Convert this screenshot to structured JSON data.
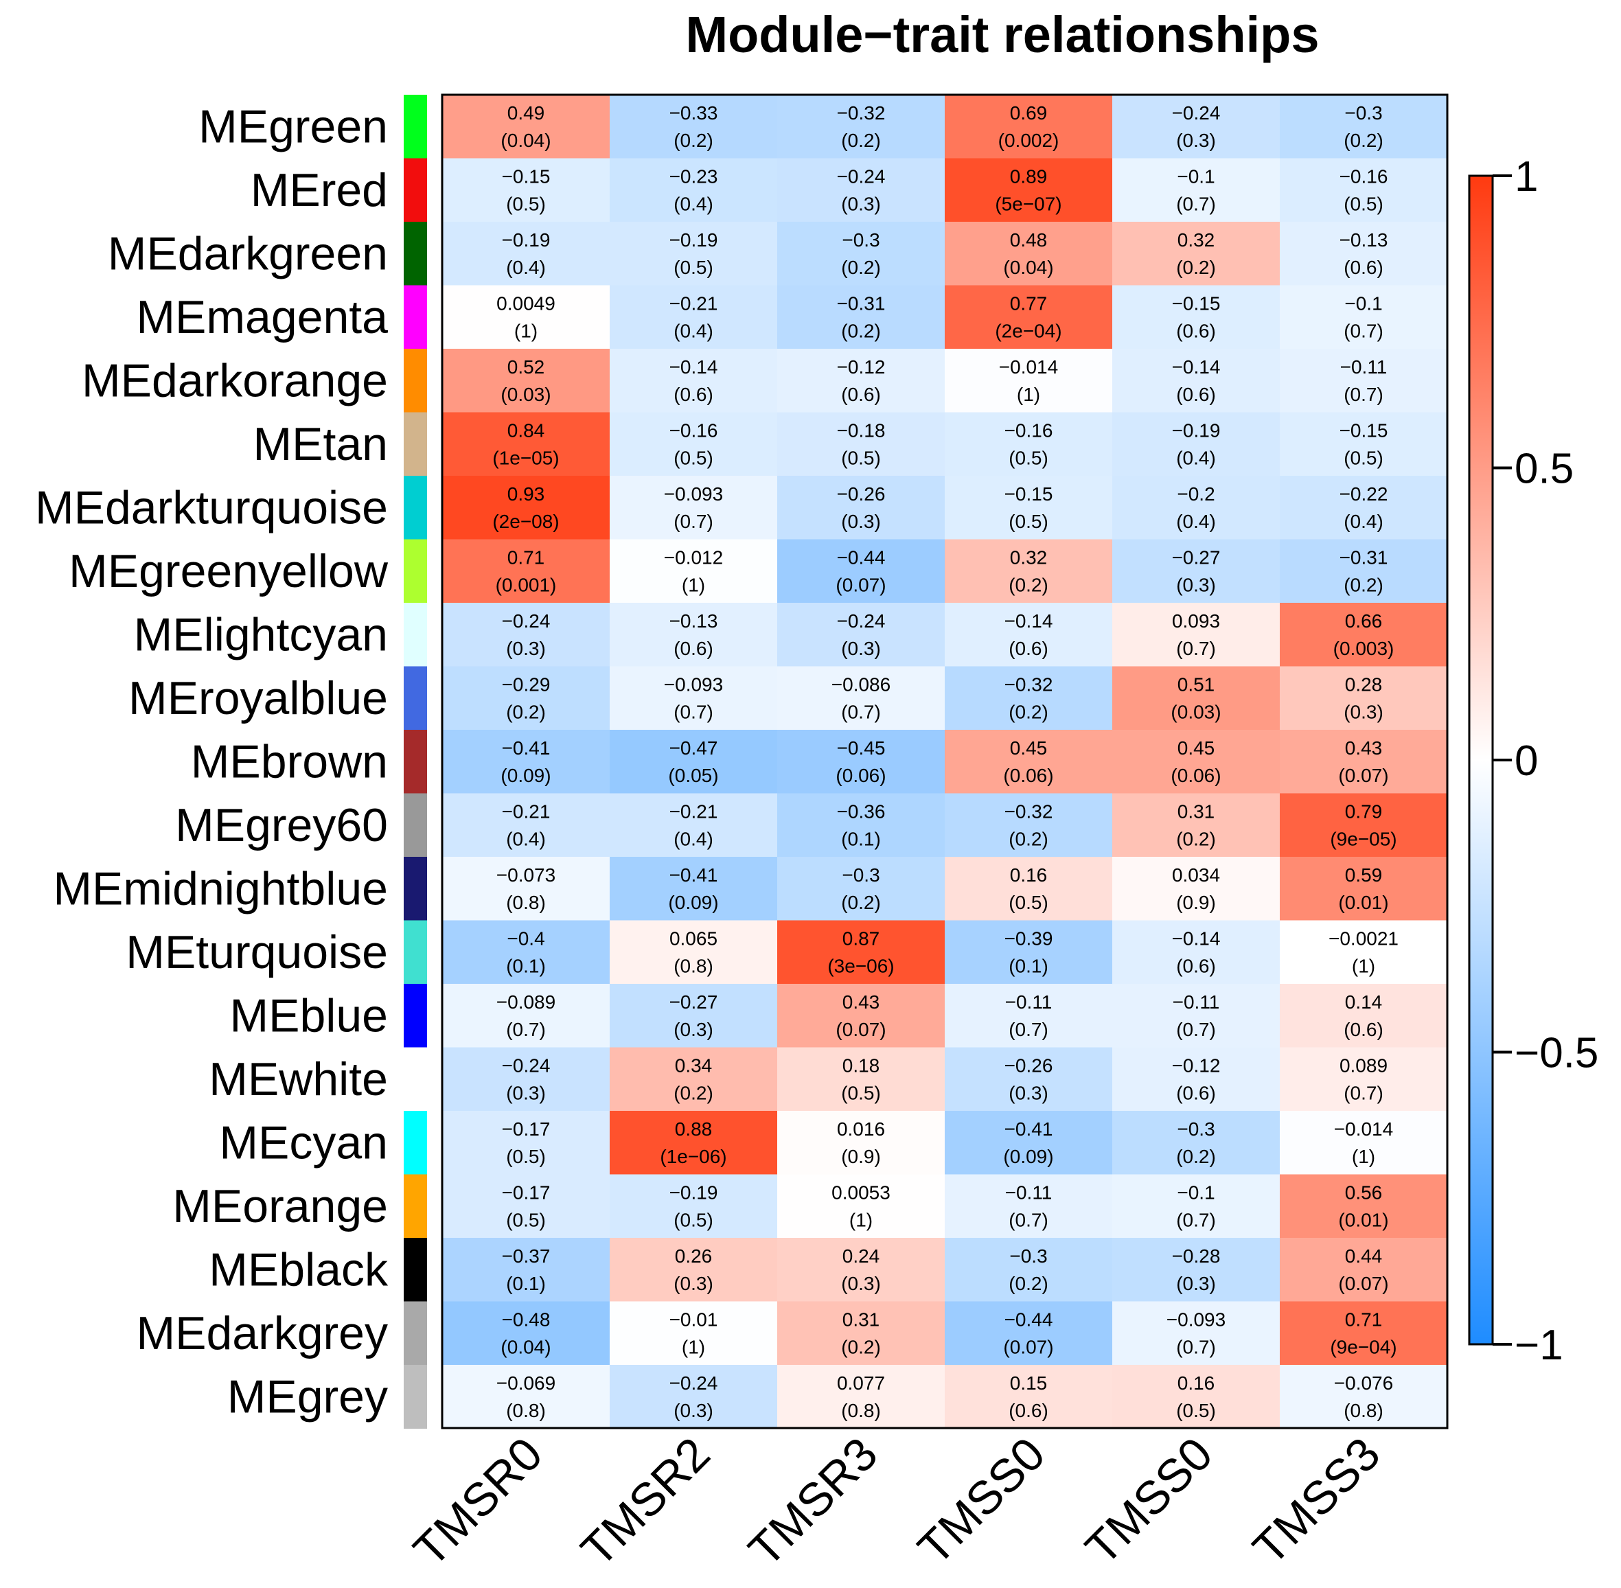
{
  "chart_data": {
    "type": "heatmap",
    "title": "Module−trait relationships",
    "columns": [
      "TMSR0",
      "TMSR2",
      "TMSR3",
      "TMSS0",
      "TMSS0",
      "TMSS3"
    ],
    "rows": [
      {
        "label": "MEgreen",
        "color": "#00FF1C",
        "r": [
          "0.49",
          "−0.33",
          "−0.32",
          "0.69",
          "−0.24",
          "−0.3"
        ],
        "p": [
          "(0.04)",
          "(0.2)",
          "(0.2)",
          "(0.002)",
          "(0.3)",
          "(0.2)"
        ],
        "v": [
          0.49,
          -0.33,
          -0.32,
          0.69,
          -0.24,
          -0.3
        ]
      },
      {
        "label": "MEred",
        "color": "#F20D0D",
        "r": [
          "−0.15",
          "−0.23",
          "−0.24",
          "0.89",
          "−0.1",
          "−0.16"
        ],
        "p": [
          "(0.5)",
          "(0.4)",
          "(0.3)",
          "(5e−07)",
          "(0.7)",
          "(0.5)"
        ],
        "v": [
          -0.15,
          -0.23,
          -0.24,
          0.89,
          -0.1,
          -0.16
        ]
      },
      {
        "label": "MEdarkgreen",
        "color": "#006400",
        "r": [
          "−0.19",
          "−0.19",
          "−0.3",
          "0.48",
          "0.32",
          "−0.13"
        ],
        "p": [
          "(0.4)",
          "(0.5)",
          "(0.2)",
          "(0.04)",
          "(0.2)",
          "(0.6)"
        ],
        "v": [
          -0.19,
          -0.19,
          -0.3,
          0.48,
          0.32,
          -0.13
        ]
      },
      {
        "label": "MEmagenta",
        "color": "#FF00FF",
        "r": [
          "0.0049",
          "−0.21",
          "−0.31",
          "0.77",
          "−0.15",
          "−0.1"
        ],
        "p": [
          "(1)",
          "(0.4)",
          "(0.2)",
          "(2e−04)",
          "(0.6)",
          "(0.7)"
        ],
        "v": [
          0.0049,
          -0.21,
          -0.31,
          0.77,
          -0.15,
          -0.1
        ]
      },
      {
        "label": "MEdarkorange",
        "color": "#FF8C00",
        "r": [
          "0.52",
          "−0.14",
          "−0.12",
          "−0.014",
          "−0.14",
          "−0.11"
        ],
        "p": [
          "(0.03)",
          "(0.6)",
          "(0.6)",
          "(1)",
          "(0.6)",
          "(0.7)"
        ],
        "v": [
          0.52,
          -0.14,
          -0.12,
          -0.014,
          -0.14,
          -0.11
        ]
      },
      {
        "label": "MEtan",
        "color": "#D2B48C",
        "r": [
          "0.84",
          "−0.16",
          "−0.18",
          "−0.16",
          "−0.19",
          "−0.15"
        ],
        "p": [
          "(1e−05)",
          "(0.5)",
          "(0.5)",
          "(0.5)",
          "(0.4)",
          "(0.5)"
        ],
        "v": [
          0.84,
          -0.16,
          -0.18,
          -0.16,
          -0.19,
          -0.15
        ]
      },
      {
        "label": "MEdarkturquoise",
        "color": "#00CED1",
        "r": [
          "0.93",
          "−0.093",
          "−0.26",
          "−0.15",
          "−0.2",
          "−0.22"
        ],
        "p": [
          "(2e−08)",
          "(0.7)",
          "(0.3)",
          "(0.5)",
          "(0.4)",
          "(0.4)"
        ],
        "v": [
          0.93,
          -0.093,
          -0.26,
          -0.15,
          -0.2,
          -0.22
        ]
      },
      {
        "label": "MEgreenyellow",
        "color": "#ADFF2F",
        "r": [
          "0.71",
          "−0.012",
          "−0.44",
          "0.32",
          "−0.27",
          "−0.31"
        ],
        "p": [
          "(0.001)",
          "(1)",
          "(0.07)",
          "(0.2)",
          "(0.3)",
          "(0.2)"
        ],
        "v": [
          0.71,
          -0.012,
          -0.44,
          0.32,
          -0.27,
          -0.31
        ]
      },
      {
        "label": "MElightcyan",
        "color": "#E0FFFF",
        "r": [
          "−0.24",
          "−0.13",
          "−0.24",
          "−0.14",
          "0.093",
          "0.66"
        ],
        "p": [
          "(0.3)",
          "(0.6)",
          "(0.3)",
          "(0.6)",
          "(0.7)",
          "(0.003)"
        ],
        "v": [
          -0.24,
          -0.13,
          -0.24,
          -0.14,
          0.093,
          0.66
        ]
      },
      {
        "label": "MEroyalblue",
        "color": "#4169E1",
        "r": [
          "−0.29",
          "−0.093",
          "−0.086",
          "−0.32",
          "0.51",
          "0.28"
        ],
        "p": [
          "(0.2)",
          "(0.7)",
          "(0.7)",
          "(0.2)",
          "(0.03)",
          "(0.3)"
        ],
        "v": [
          -0.29,
          -0.093,
          -0.086,
          -0.32,
          0.51,
          0.28
        ]
      },
      {
        "label": "MEbrown",
        "color": "#A52A2A",
        "r": [
          "−0.41",
          "−0.47",
          "−0.45",
          "0.45",
          "0.45",
          "0.43"
        ],
        "p": [
          "(0.09)",
          "(0.05)",
          "(0.06)",
          "(0.06)",
          "(0.06)",
          "(0.07)"
        ],
        "v": [
          -0.41,
          -0.47,
          -0.45,
          0.45,
          0.45,
          0.43
        ]
      },
      {
        "label": "MEgrey60",
        "color": "#999999",
        "r": [
          "−0.21",
          "−0.21",
          "−0.36",
          "−0.32",
          "0.31",
          "0.79"
        ],
        "p": [
          "(0.4)",
          "(0.4)",
          "(0.1)",
          "(0.2)",
          "(0.2)",
          "(9e−05)"
        ],
        "v": [
          -0.21,
          -0.21,
          -0.36,
          -0.32,
          0.31,
          0.79
        ]
      },
      {
        "label": "MEmidnightblue",
        "color": "#191970",
        "r": [
          "−0.073",
          "−0.41",
          "−0.3",
          "0.16",
          "0.034",
          "0.59"
        ],
        "p": [
          "(0.8)",
          "(0.09)",
          "(0.2)",
          "(0.5)",
          "(0.9)",
          "(0.01)"
        ],
        "v": [
          -0.073,
          -0.41,
          -0.3,
          0.16,
          0.034,
          0.59
        ]
      },
      {
        "label": "MEturquoise",
        "color": "#40E0D0",
        "r": [
          "−0.4",
          "0.065",
          "0.87",
          "−0.39",
          "−0.14",
          "−0.0021"
        ],
        "p": [
          "(0.1)",
          "(0.8)",
          "(3e−06)",
          "(0.1)",
          "(0.6)",
          "(1)"
        ],
        "v": [
          -0.4,
          0.065,
          0.87,
          -0.39,
          -0.14,
          -0.0021
        ]
      },
      {
        "label": "MEblue",
        "color": "#0000FF",
        "r": [
          "−0.089",
          "−0.27",
          "0.43",
          "−0.11",
          "−0.11",
          "0.14"
        ],
        "p": [
          "(0.7)",
          "(0.3)",
          "(0.07)",
          "(0.7)",
          "(0.7)",
          "(0.6)"
        ],
        "v": [
          -0.089,
          -0.27,
          0.43,
          -0.11,
          -0.11,
          0.14
        ]
      },
      {
        "label": "MEwhite",
        "color": "#FFFFFF",
        "r": [
          "−0.24",
          "0.34",
          "0.18",
          "−0.26",
          "−0.12",
          "0.089"
        ],
        "p": [
          "(0.3)",
          "(0.2)",
          "(0.5)",
          "(0.3)",
          "(0.6)",
          "(0.7)"
        ],
        "v": [
          -0.24,
          0.34,
          0.18,
          -0.26,
          -0.12,
          0.089
        ]
      },
      {
        "label": "MEcyan",
        "color": "#00FFFF",
        "r": [
          "−0.17",
          "0.88",
          "0.016",
          "−0.41",
          "−0.3",
          "−0.014"
        ],
        "p": [
          "(0.5)",
          "(1e−06)",
          "(0.9)",
          "(0.09)",
          "(0.2)",
          "(1)"
        ],
        "v": [
          -0.17,
          0.88,
          0.016,
          -0.41,
          -0.3,
          -0.014
        ]
      },
      {
        "label": "MEorange",
        "color": "#FFA500",
        "r": [
          "−0.17",
          "−0.19",
          "0.0053",
          "−0.11",
          "−0.1",
          "0.56"
        ],
        "p": [
          "(0.5)",
          "(0.5)",
          "(1)",
          "(0.7)",
          "(0.7)",
          "(0.01)"
        ],
        "v": [
          -0.17,
          -0.19,
          0.0053,
          -0.11,
          -0.1,
          0.56
        ]
      },
      {
        "label": "MEblack",
        "color": "#000000",
        "r": [
          "−0.37",
          "0.26",
          "0.24",
          "−0.3",
          "−0.28",
          "0.44"
        ],
        "p": [
          "(0.1)",
          "(0.3)",
          "(0.3)",
          "(0.2)",
          "(0.3)",
          "(0.07)"
        ],
        "v": [
          -0.37,
          0.26,
          0.24,
          -0.3,
          -0.28,
          0.44
        ]
      },
      {
        "label": "MEdarkgrey",
        "color": "#A9A9A9",
        "r": [
          "−0.48",
          "−0.01",
          "0.31",
          "−0.44",
          "−0.093",
          "0.71"
        ],
        "p": [
          "(0.04)",
          "(1)",
          "(0.2)",
          "(0.07)",
          "(0.7)",
          "(9e−04)"
        ],
        "v": [
          -0.48,
          -0.01,
          0.31,
          -0.44,
          -0.093,
          0.71
        ]
      },
      {
        "label": "MEgrey",
        "color": "#BEBEBE",
        "r": [
          "−0.069",
          "−0.24",
          "0.077",
          "0.15",
          "0.16",
          "−0.076"
        ],
        "p": [
          "(0.8)",
          "(0.3)",
          "(0.8)",
          "(0.6)",
          "(0.5)",
          "(0.8)"
        ],
        "v": [
          -0.069,
          -0.24,
          0.077,
          0.15,
          0.16,
          -0.076
        ]
      }
    ],
    "colorbar": {
      "range": [
        -1,
        1
      ],
      "colors": {
        "low": "#1E8CFF",
        "mid": "#FFFFFF",
        "high": "#FF3A10"
      },
      "ticks": [
        {
          "value": 1,
          "label": "1"
        },
        {
          "value": 0.5,
          "label": "0.5"
        },
        {
          "value": 0,
          "label": "0"
        },
        {
          "value": -0.5,
          "label": "−0.5"
        },
        {
          "value": -1,
          "label": "−1"
        }
      ]
    }
  }
}
